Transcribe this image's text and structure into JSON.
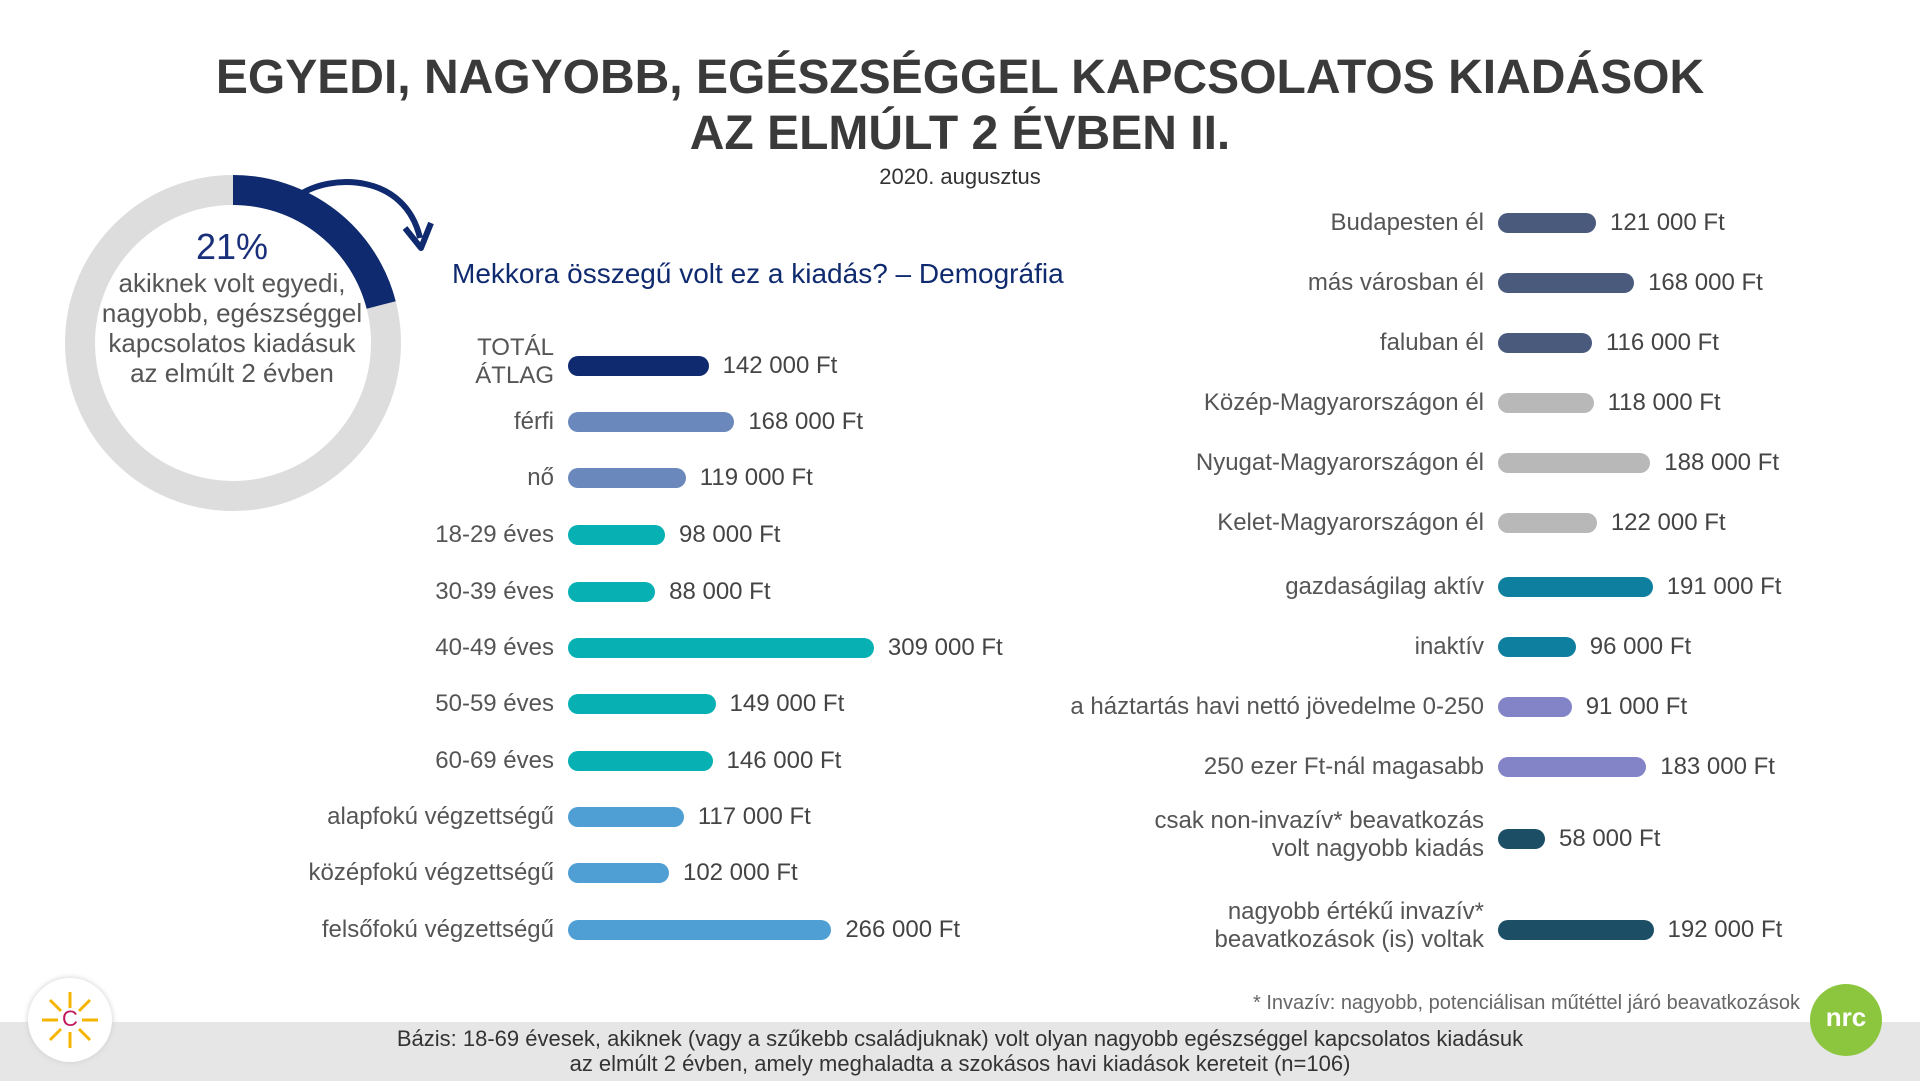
{
  "title_line1": "EGYEDI, NAGYOBB, EGÉSZSÉGGEL KAPCSOLATOS KIADÁSOK",
  "title_line2": "AZ ELMÚLT 2 ÉVBEN II.",
  "date": "2020. augusztus",
  "question": "Mekkora összegű volt ez a kiadás? – Demográfia",
  "ring": {
    "percent_label": "21%",
    "percent": 21,
    "text": "akiknek volt egyedi, nagyobb, egészséggel kapcsolatos kiadásuk az elmúlt 2 évben"
  },
  "footnote": "* Invazív: nagyobb, potenciálisan műtéttel járó beavatkozások",
  "basis_line1": "Bázis: 18-69 évesek, akiknek (vagy a szűkebb családjuknak) volt olyan nagyobb egészséggel kapcsolatos kiadásuk",
  "basis_line2": "az elmúlt 2 évben, amely meghaladta a szokásos havi kiadások kereteit (n=106)",
  "logos": {
    "left": "C",
    "right": "nrc"
  },
  "colors": {
    "navy": "#0f2a6e",
    "steel": "#6a88bb",
    "teal": "#07b0b3",
    "sky": "#4f9fd4",
    "slate": "#4a5a7d",
    "gray": "#b8b8b8",
    "petrol": "#0e7f9e",
    "lavender": "#8383c8",
    "darkteal": "#1c4f66",
    "ringgray": "#dddddd",
    "green": "#8cc63f"
  },
  "chart_data": [
    {
      "type": "bar",
      "orientation": "horizontal",
      "unit": "Ft",
      "categories": [
        "TOTÁL ÁTLAG",
        "férfi",
        "nő",
        "18-29 éves",
        "30-39 éves",
        "40-49 éves",
        "50-59 éves",
        "60-69 éves",
        "alapfokú végzettségű",
        "középfokú végzettségű",
        "felsőfokú végzettségű"
      ],
      "values": [
        142000,
        168000,
        119000,
        98000,
        88000,
        309000,
        149000,
        146000,
        117000,
        102000,
        266000
      ],
      "value_labels": [
        "142 000 Ft",
        "168 000 Ft",
        "119 000 Ft",
        "98 000 Ft",
        "88 000 Ft",
        "309 000 Ft",
        "149 000 Ft",
        "146 000 Ft",
        "117 000 Ft",
        "102 000 Ft",
        "266 000 Ft"
      ],
      "bar_colors": [
        "#0f2a6e",
        "#6a88bb",
        "#6a88bb",
        "#07b0b3",
        "#07b0b3",
        "#07b0b3",
        "#07b0b3",
        "#07b0b3",
        "#4f9fd4",
        "#4f9fd4",
        "#4f9fd4"
      ]
    },
    {
      "type": "bar",
      "orientation": "horizontal",
      "unit": "Ft",
      "categories": [
        "Budapesten él",
        "más városban él",
        "faluban él",
        "Közép-Magyarországon él",
        "Nyugat-Magyarországon él",
        "Kelet-Magyarországon él",
        "gazdaságilag aktív",
        "inaktív",
        "a háztartás havi nettó jövedelme 0-250",
        "250 ezer Ft-nál magasabb",
        "csak non-invazív* beavatkozás volt nagyobb kiadás",
        "nagyobb értékű invazív* beavatkozások (is) voltak"
      ],
      "values": [
        121000,
        168000,
        116000,
        118000,
        188000,
        122000,
        191000,
        96000,
        91000,
        183000,
        58000,
        192000
      ],
      "value_labels": [
        "121 000 Ft",
        "168 000 Ft",
        "116 000 Ft",
        "118 000 Ft",
        "188 000 Ft",
        "122 000 Ft",
        "191 000 Ft",
        "96 000 Ft",
        "91 000 Ft",
        "183 000 Ft",
        "58 000 Ft",
        "192 000 Ft"
      ],
      "bar_colors": [
        "#4a5a7d",
        "#4a5a7d",
        "#4a5a7d",
        "#b8b8b8",
        "#b8b8b8",
        "#b8b8b8",
        "#0e7f9e",
        "#0e7f9e",
        "#8383c8",
        "#8383c8",
        "#1c4f66",
        "#1c4f66"
      ]
    }
  ]
}
